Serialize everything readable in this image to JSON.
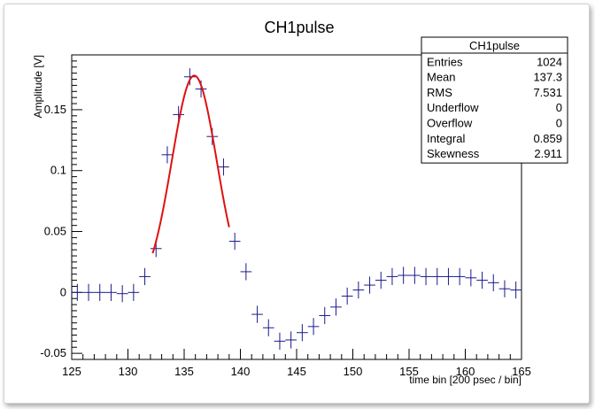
{
  "colors": {
    "data_points": "#1a1a8c",
    "fit_curve": "#e01010",
    "frame": "#000000"
  },
  "chart_data": {
    "type": "scatter",
    "title": "CH1pulse",
    "xlabel": "time bin [200 psec / bin]",
    "ylabel": "Amplitude [V]",
    "xlim": [
      125,
      165
    ],
    "ylim": [
      -0.055,
      0.195
    ],
    "xticks": [
      125,
      130,
      135,
      140,
      145,
      150,
      155,
      160,
      165
    ],
    "xtick_labels": [
      "125",
      "130",
      "135",
      "140",
      "145",
      "150",
      "155",
      "160",
      "165"
    ],
    "yticks": [
      -0.05,
      0,
      0.05,
      0.1,
      0.15
    ],
    "ytick_labels": [
      "-0.05",
      "0",
      "0.05",
      "0.1",
      "0.15"
    ],
    "grid": false,
    "series": [
      {
        "style": "errorbar",
        "color": "#1a1a8c",
        "x_half_width": 0.5,
        "points": [
          {
            "x": 125.5,
            "y": 0.0,
            "yerr": 0.007
          },
          {
            "x": 126.5,
            "y": 0.0,
            "yerr": 0.007
          },
          {
            "x": 127.5,
            "y": 0.0,
            "yerr": 0.007
          },
          {
            "x": 128.5,
            "y": 0.0,
            "yerr": 0.007
          },
          {
            "x": 129.5,
            "y": -0.001,
            "yerr": 0.007
          },
          {
            "x": 130.5,
            "y": 0.0,
            "yerr": 0.007
          },
          {
            "x": 131.5,
            "y": 0.013,
            "yerr": 0.007
          },
          {
            "x": 132.5,
            "y": 0.036,
            "yerr": 0.007
          },
          {
            "x": 133.5,
            "y": 0.113,
            "yerr": 0.007
          },
          {
            "x": 134.5,
            "y": 0.146,
            "yerr": 0.007
          },
          {
            "x": 135.5,
            "y": 0.177,
            "yerr": 0.007
          },
          {
            "x": 136.5,
            "y": 0.167,
            "yerr": 0.007
          },
          {
            "x": 137.5,
            "y": 0.128,
            "yerr": 0.007
          },
          {
            "x": 138.5,
            "y": 0.103,
            "yerr": 0.007
          },
          {
            "x": 139.5,
            "y": 0.042,
            "yerr": 0.007
          },
          {
            "x": 140.5,
            "y": 0.017,
            "yerr": 0.007
          },
          {
            "x": 141.5,
            "y": -0.018,
            "yerr": 0.007
          },
          {
            "x": 142.5,
            "y": -0.029,
            "yerr": 0.007
          },
          {
            "x": 143.5,
            "y": -0.04,
            "yerr": 0.007
          },
          {
            "x": 144.5,
            "y": -0.039,
            "yerr": 0.007
          },
          {
            "x": 145.5,
            "y": -0.033,
            "yerr": 0.007
          },
          {
            "x": 146.5,
            "y": -0.028,
            "yerr": 0.007
          },
          {
            "x": 147.5,
            "y": -0.019,
            "yerr": 0.007
          },
          {
            "x": 148.5,
            "y": -0.012,
            "yerr": 0.007
          },
          {
            "x": 149.5,
            "y": -0.003,
            "yerr": 0.007
          },
          {
            "x": 150.5,
            "y": 0.002,
            "yerr": 0.007
          },
          {
            "x": 151.5,
            "y": 0.006,
            "yerr": 0.007
          },
          {
            "x": 152.5,
            "y": 0.01,
            "yerr": 0.007
          },
          {
            "x": 153.5,
            "y": 0.013,
            "yerr": 0.007
          },
          {
            "x": 154.5,
            "y": 0.014,
            "yerr": 0.007
          },
          {
            "x": 155.5,
            "y": 0.014,
            "yerr": 0.007
          },
          {
            "x": 156.5,
            "y": 0.013,
            "yerr": 0.007
          },
          {
            "x": 157.5,
            "y": 0.013,
            "yerr": 0.007
          },
          {
            "x": 158.5,
            "y": 0.013,
            "yerr": 0.007
          },
          {
            "x": 159.5,
            "y": 0.013,
            "yerr": 0.007
          },
          {
            "x": 160.5,
            "y": 0.012,
            "yerr": 0.007
          },
          {
            "x": 161.5,
            "y": 0.01,
            "yerr": 0.007
          },
          {
            "x": 162.5,
            "y": 0.008,
            "yerr": 0.007
          },
          {
            "x": 163.5,
            "y": 0.003,
            "yerr": 0.007
          },
          {
            "x": 164.5,
            "y": 0.002,
            "yerr": 0.007
          }
        ]
      },
      {
        "style": "fit-line",
        "color": "#e01010",
        "function": "gaussian",
        "amplitude": 0.178,
        "mean": 135.9,
        "sigma": 2.0,
        "x_range": [
          132.2,
          139.0
        ]
      }
    ]
  },
  "stats_box": {
    "title": "CH1pulse",
    "rows": [
      {
        "label": "Entries",
        "value": "1024"
      },
      {
        "label": "Mean",
        "value": "137.3"
      },
      {
        "label": "RMS",
        "value": "7.531"
      },
      {
        "label": "Underflow",
        "value": "0"
      },
      {
        "label": "Overflow",
        "value": "0"
      },
      {
        "label": "Integral",
        "value": "0.859"
      },
      {
        "label": "Skewness",
        "value": "2.911"
      }
    ]
  }
}
